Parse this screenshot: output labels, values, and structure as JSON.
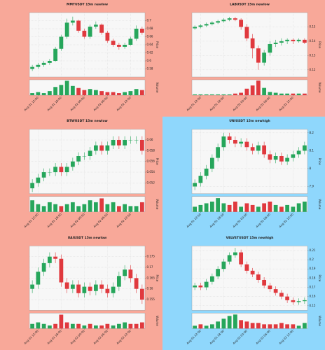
{
  "chart_data": [
    {
      "type": "candlestick",
      "title": "MMTUSDT 15m newlow",
      "background": "#f8a899",
      "up_color": "#26a65b",
      "down_color": "#e0393e",
      "ylabel": "Price",
      "volume_label": "Volume",
      "open": [
        0.58,
        0.585,
        0.59,
        0.595,
        0.6,
        0.63,
        0.66,
        0.695,
        0.7,
        0.675,
        0.66,
        0.685,
        0.69,
        0.67,
        0.65,
        0.64,
        0.635,
        0.64,
        0.655,
        0.68
      ],
      "high": [
        0.59,
        0.595,
        0.6,
        0.605,
        0.635,
        0.665,
        0.705,
        0.71,
        0.702,
        0.68,
        0.69,
        0.698,
        0.693,
        0.675,
        0.655,
        0.645,
        0.645,
        0.66,
        0.688,
        0.685
      ],
      "low": [
        0.575,
        0.58,
        0.585,
        0.59,
        0.598,
        0.625,
        0.655,
        0.688,
        0.67,
        0.655,
        0.655,
        0.68,
        0.665,
        0.645,
        0.635,
        0.628,
        0.63,
        0.638,
        0.65,
        0.665
      ],
      "close": [
        0.585,
        0.59,
        0.595,
        0.6,
        0.63,
        0.66,
        0.695,
        0.7,
        0.675,
        0.66,
        0.685,
        0.69,
        0.67,
        0.65,
        0.64,
        0.635,
        0.64,
        0.655,
        0.68,
        0.67
      ],
      "volume": [
        2,
        3,
        2,
        4,
        8,
        10,
        14,
        9,
        7,
        5,
        6,
        5,
        4,
        3,
        3,
        2,
        3,
        4,
        6,
        5
      ],
      "ylim": [
        0.56,
        0.72
      ],
      "yticks": [
        0.58,
        0.6,
        0.62,
        0.64,
        0.66,
        0.68,
        0.7
      ],
      "volume_ylim": [
        0,
        15
      ],
      "xticks": [
        {
          "value": 1,
          "label": "Aug 01 12:00"
        },
        {
          "value": 5,
          "label": "Aug 01 18:00"
        },
        {
          "value": 9,
          "label": "Aug 02 00:00"
        },
        {
          "value": 13,
          "label": "Aug 02 06:00"
        },
        {
          "value": 17,
          "label": "Aug 02 12:00"
        }
      ]
    },
    {
      "type": "candlestick",
      "title": "LABUSDT 15m newlow",
      "background": "#f8a899",
      "up_color": "#26a65b",
      "down_color": "#e0393e",
      "ylabel": "Price",
      "volume_label": "Volume",
      "open": [
        0.149,
        0.15,
        0.151,
        0.152,
        0.153,
        0.154,
        0.155,
        0.156,
        0.155,
        0.15,
        0.142,
        0.135,
        0.125,
        0.132,
        0.138,
        0.139,
        0.14,
        0.141,
        0.14,
        0.141
      ],
      "high": [
        0.151,
        0.152,
        0.153,
        0.154,
        0.155,
        0.156,
        0.157,
        0.157,
        0.156,
        0.152,
        0.145,
        0.137,
        0.134,
        0.14,
        0.141,
        0.142,
        0.142,
        0.142,
        0.142,
        0.142
      ],
      "low": [
        0.148,
        0.149,
        0.15,
        0.151,
        0.152,
        0.153,
        0.154,
        0.154,
        0.148,
        0.14,
        0.128,
        0.12,
        0.123,
        0.13,
        0.136,
        0.137,
        0.138,
        0.138,
        0.139,
        0.138
      ],
      "close": [
        0.15,
        0.151,
        0.152,
        0.153,
        0.154,
        0.155,
        0.156,
        0.155,
        0.15,
        0.142,
        0.135,
        0.125,
        0.132,
        0.138,
        0.139,
        0.14,
        0.141,
        0.14,
        0.141,
        0.139
      ],
      "volume": [
        1,
        1,
        1,
        1,
        1,
        1,
        1,
        2,
        3,
        8,
        12,
        18,
        9,
        4,
        3,
        2,
        2,
        2,
        2,
        2
      ],
      "ylim": [
        0.115,
        0.16
      ],
      "yticks": [
        0.12,
        0.13,
        0.14,
        0.15
      ],
      "volume_ylim": [
        0,
        19
      ],
      "xticks": [
        {
          "value": 1,
          "label": "Aug 01 12:00"
        },
        {
          "value": 5,
          "label": "Aug 01 18:00"
        },
        {
          "value": 9,
          "label": "Aug 02 00:00"
        },
        {
          "value": 13,
          "label": "Aug 02 06:00"
        },
        {
          "value": 17,
          "label": "Aug 02 12:00"
        }
      ]
    },
    {
      "type": "candlestick",
      "title": "BTWUSDT 15m newlow",
      "background": "#f8a899",
      "up_color": "#26a65b",
      "down_color": "#e0393e",
      "ylabel": "Price",
      "volume_label": "Volume",
      "open": [
        0.051,
        0.052,
        0.053,
        0.054,
        0.054,
        0.055,
        0.054,
        0.055,
        0.056,
        0.057,
        0.057,
        0.058,
        0.059,
        0.058,
        0.059,
        0.06,
        0.059,
        0.06,
        0.06,
        0.06
      ],
      "high": [
        0.0527,
        0.0537,
        0.0547,
        0.0547,
        0.0557,
        0.0557,
        0.0557,
        0.0567,
        0.0577,
        0.0577,
        0.0587,
        0.0597,
        0.0597,
        0.0597,
        0.0607,
        0.0607,
        0.0607,
        0.0607,
        0.0607,
        0.0607
      ],
      "low": [
        0.0503,
        0.0513,
        0.0523,
        0.0533,
        0.0533,
        0.0533,
        0.0533,
        0.0543,
        0.0553,
        0.0563,
        0.0563,
        0.0573,
        0.0573,
        0.0573,
        0.0583,
        0.0583,
        0.0583,
        0.0593,
        0.0593,
        0.0573
      ],
      "close": [
        0.052,
        0.053,
        0.054,
        0.054,
        0.055,
        0.054,
        0.055,
        0.056,
        0.057,
        0.057,
        0.058,
        0.059,
        0.058,
        0.059,
        0.06,
        0.059,
        0.06,
        0.06,
        0.06,
        0.058
      ],
      "volume": [
        6,
        4,
        3,
        5,
        4,
        3,
        4,
        5,
        3,
        4,
        6,
        5,
        7,
        4,
        5,
        3,
        4,
        3,
        3,
        5
      ],
      "ylim": [
        0.05,
        0.062
      ],
      "yticks": [
        0.052,
        0.054,
        0.056,
        0.058,
        0.06
      ],
      "volume_ylim": [
        0,
        8
      ],
      "xticks": [
        {
          "value": 1,
          "label": "Aug 01 12:00"
        },
        {
          "value": 5,
          "label": "Aug 01 18:00"
        },
        {
          "value": 9,
          "label": "Aug 02 00:00"
        },
        {
          "value": 13,
          "label": "Aug 02 06:00"
        },
        {
          "value": 17,
          "label": "Aug 02 12:00"
        }
      ]
    },
    {
      "type": "candlestick",
      "title": "UNIUSDT 15m newhigh",
      "background": "#8fd7fc",
      "up_color": "#26a65b",
      "down_color": "#e0393e",
      "ylabel": "Price",
      "volume_label": "Volume",
      "open": [
        7.9,
        7.92,
        7.96,
        8.0,
        8.06,
        8.12,
        8.18,
        8.16,
        8.14,
        8.15,
        8.12,
        8.1,
        8.13,
        8.08,
        8.05,
        8.07,
        8.04,
        8.06,
        8.08,
        8.1
      ],
      "high": [
        7.94,
        7.98,
        8.02,
        8.08,
        8.14,
        8.2,
        8.2,
        8.18,
        8.17,
        8.17,
        8.14,
        8.15,
        8.15,
        8.1,
        8.09,
        8.09,
        8.08,
        8.1,
        8.12,
        8.15
      ],
      "low": [
        7.88,
        7.9,
        7.94,
        7.98,
        8.04,
        8.1,
        8.14,
        8.12,
        8.12,
        8.1,
        8.08,
        8.08,
        8.06,
        8.03,
        8.03,
        8.02,
        8.02,
        8.04,
        8.06,
        8.08
      ],
      "close": [
        7.92,
        7.96,
        8.0,
        8.06,
        8.12,
        8.18,
        8.16,
        8.14,
        8.15,
        8.12,
        8.1,
        8.13,
        8.08,
        8.05,
        8.07,
        8.04,
        8.06,
        8.08,
        8.1,
        8.13
      ],
      "volume": [
        3,
        4,
        5,
        6,
        8,
        5,
        4,
        6,
        3,
        5,
        4,
        3,
        5,
        6,
        4,
        3,
        4,
        3,
        5,
        6
      ],
      "ylim": [
        7.86,
        8.22
      ],
      "yticks": [
        7.9,
        8.0,
        8.1,
        8.2
      ],
      "volume_ylim": [
        0,
        9
      ],
      "xticks": [
        {
          "value": 1,
          "label": "Aug 01 12:00"
        },
        {
          "value": 5,
          "label": "Aug 01 18:00"
        },
        {
          "value": 9,
          "label": "Aug 02 00:00"
        },
        {
          "value": 13,
          "label": "Aug 02 06:00"
        },
        {
          "value": 17,
          "label": "Aug 02 12:00"
        }
      ]
    },
    {
      "type": "candlestick",
      "title": "UAIUSDT 15m newlow",
      "background": "#f8a899",
      "up_color": "#26a65b",
      "down_color": "#e0393e",
      "ylabel": "Price",
      "volume_label": "Volume",
      "open": [
        0.16,
        0.162,
        0.168,
        0.172,
        0.175,
        0.174,
        0.163,
        0.16,
        0.162,
        0.158,
        0.161,
        0.159,
        0.162,
        0.16,
        0.158,
        0.161,
        0.166,
        0.169,
        0.165,
        0.16
      ],
      "high": [
        0.164,
        0.17,
        0.174,
        0.177,
        0.177,
        0.176,
        0.165,
        0.164,
        0.164,
        0.163,
        0.163,
        0.164,
        0.164,
        0.162,
        0.163,
        0.168,
        0.171,
        0.171,
        0.167,
        0.162
      ],
      "low": [
        0.158,
        0.16,
        0.166,
        0.17,
        0.172,
        0.161,
        0.158,
        0.158,
        0.156,
        0.156,
        0.157,
        0.157,
        0.158,
        0.156,
        0.156,
        0.159,
        0.164,
        0.163,
        0.158,
        0.153
      ],
      "close": [
        0.162,
        0.168,
        0.172,
        0.175,
        0.174,
        0.163,
        0.16,
        0.162,
        0.158,
        0.161,
        0.159,
        0.162,
        0.16,
        0.158,
        0.161,
        0.166,
        0.169,
        0.165,
        0.16,
        0.155
      ],
      "volume": [
        3,
        4,
        3,
        2,
        3,
        9,
        4,
        3,
        3,
        2,
        3,
        2,
        2,
        3,
        2,
        3,
        4,
        3,
        3,
        4
      ],
      "ylim": [
        0.15,
        0.18
      ],
      "yticks": [
        0.155,
        0.16,
        0.165,
        0.17,
        0.175
      ],
      "volume_ylim": [
        0,
        10
      ],
      "xticks": [
        {
          "value": 1,
          "label": "Aug 01 12:00"
        },
        {
          "value": 5,
          "label": "Aug 01 18:00"
        },
        {
          "value": 9,
          "label": "Aug 02 00:00"
        },
        {
          "value": 13,
          "label": "Aug 02 06:00"
        },
        {
          "value": 17,
          "label": "Aug 02 12:00"
        }
      ]
    },
    {
      "type": "candlestick",
      "title": "VELVETUSDT 15m newhigh",
      "background": "#8fd7fc",
      "up_color": "#26a65b",
      "down_color": "#e0393e",
      "ylabel": "Price",
      "volume_label": "Volume",
      "open": [
        0.17,
        0.172,
        0.17,
        0.176,
        0.182,
        0.19,
        0.198,
        0.205,
        0.208,
        0.195,
        0.188,
        0.184,
        0.178,
        0.172,
        0.168,
        0.164,
        0.16,
        0.156,
        0.154,
        0.155
      ],
      "high": [
        0.175,
        0.175,
        0.179,
        0.185,
        0.193,
        0.201,
        0.208,
        0.213,
        0.211,
        0.198,
        0.191,
        0.187,
        0.181,
        0.175,
        0.171,
        0.167,
        0.163,
        0.159,
        0.158,
        0.159
      ],
      "low": [
        0.167,
        0.167,
        0.167,
        0.173,
        0.179,
        0.187,
        0.195,
        0.202,
        0.192,
        0.185,
        0.181,
        0.175,
        0.169,
        0.165,
        0.161,
        0.157,
        0.153,
        0.151,
        0.151,
        0.152
      ],
      "close": [
        0.172,
        0.17,
        0.176,
        0.182,
        0.19,
        0.198,
        0.205,
        0.208,
        0.195,
        0.188,
        0.184,
        0.178,
        0.172,
        0.168,
        0.164,
        0.16,
        0.156,
        0.154,
        0.155,
        0.156
      ],
      "volume": [
        2,
        3,
        2,
        3,
        5,
        7,
        9,
        10,
        6,
        5,
        4,
        4,
        3,
        3,
        3,
        4,
        3,
        3,
        2,
        4
      ],
      "ylim": [
        0.145,
        0.215
      ],
      "yticks": [
        0.15,
        0.16,
        0.17,
        0.18,
        0.19,
        0.2,
        0.21
      ],
      "volume_ylim": [
        0,
        11
      ],
      "xticks": [
        {
          "value": 1,
          "label": "Aug 01 12:00"
        },
        {
          "value": 5,
          "label": "Aug 01 18:00"
        },
        {
          "value": 9,
          "label": "Aug 02 00:00"
        },
        {
          "value": 13,
          "label": "Aug 02 06:00"
        },
        {
          "value": 17,
          "label": "Aug 02 12:00"
        }
      ]
    }
  ]
}
